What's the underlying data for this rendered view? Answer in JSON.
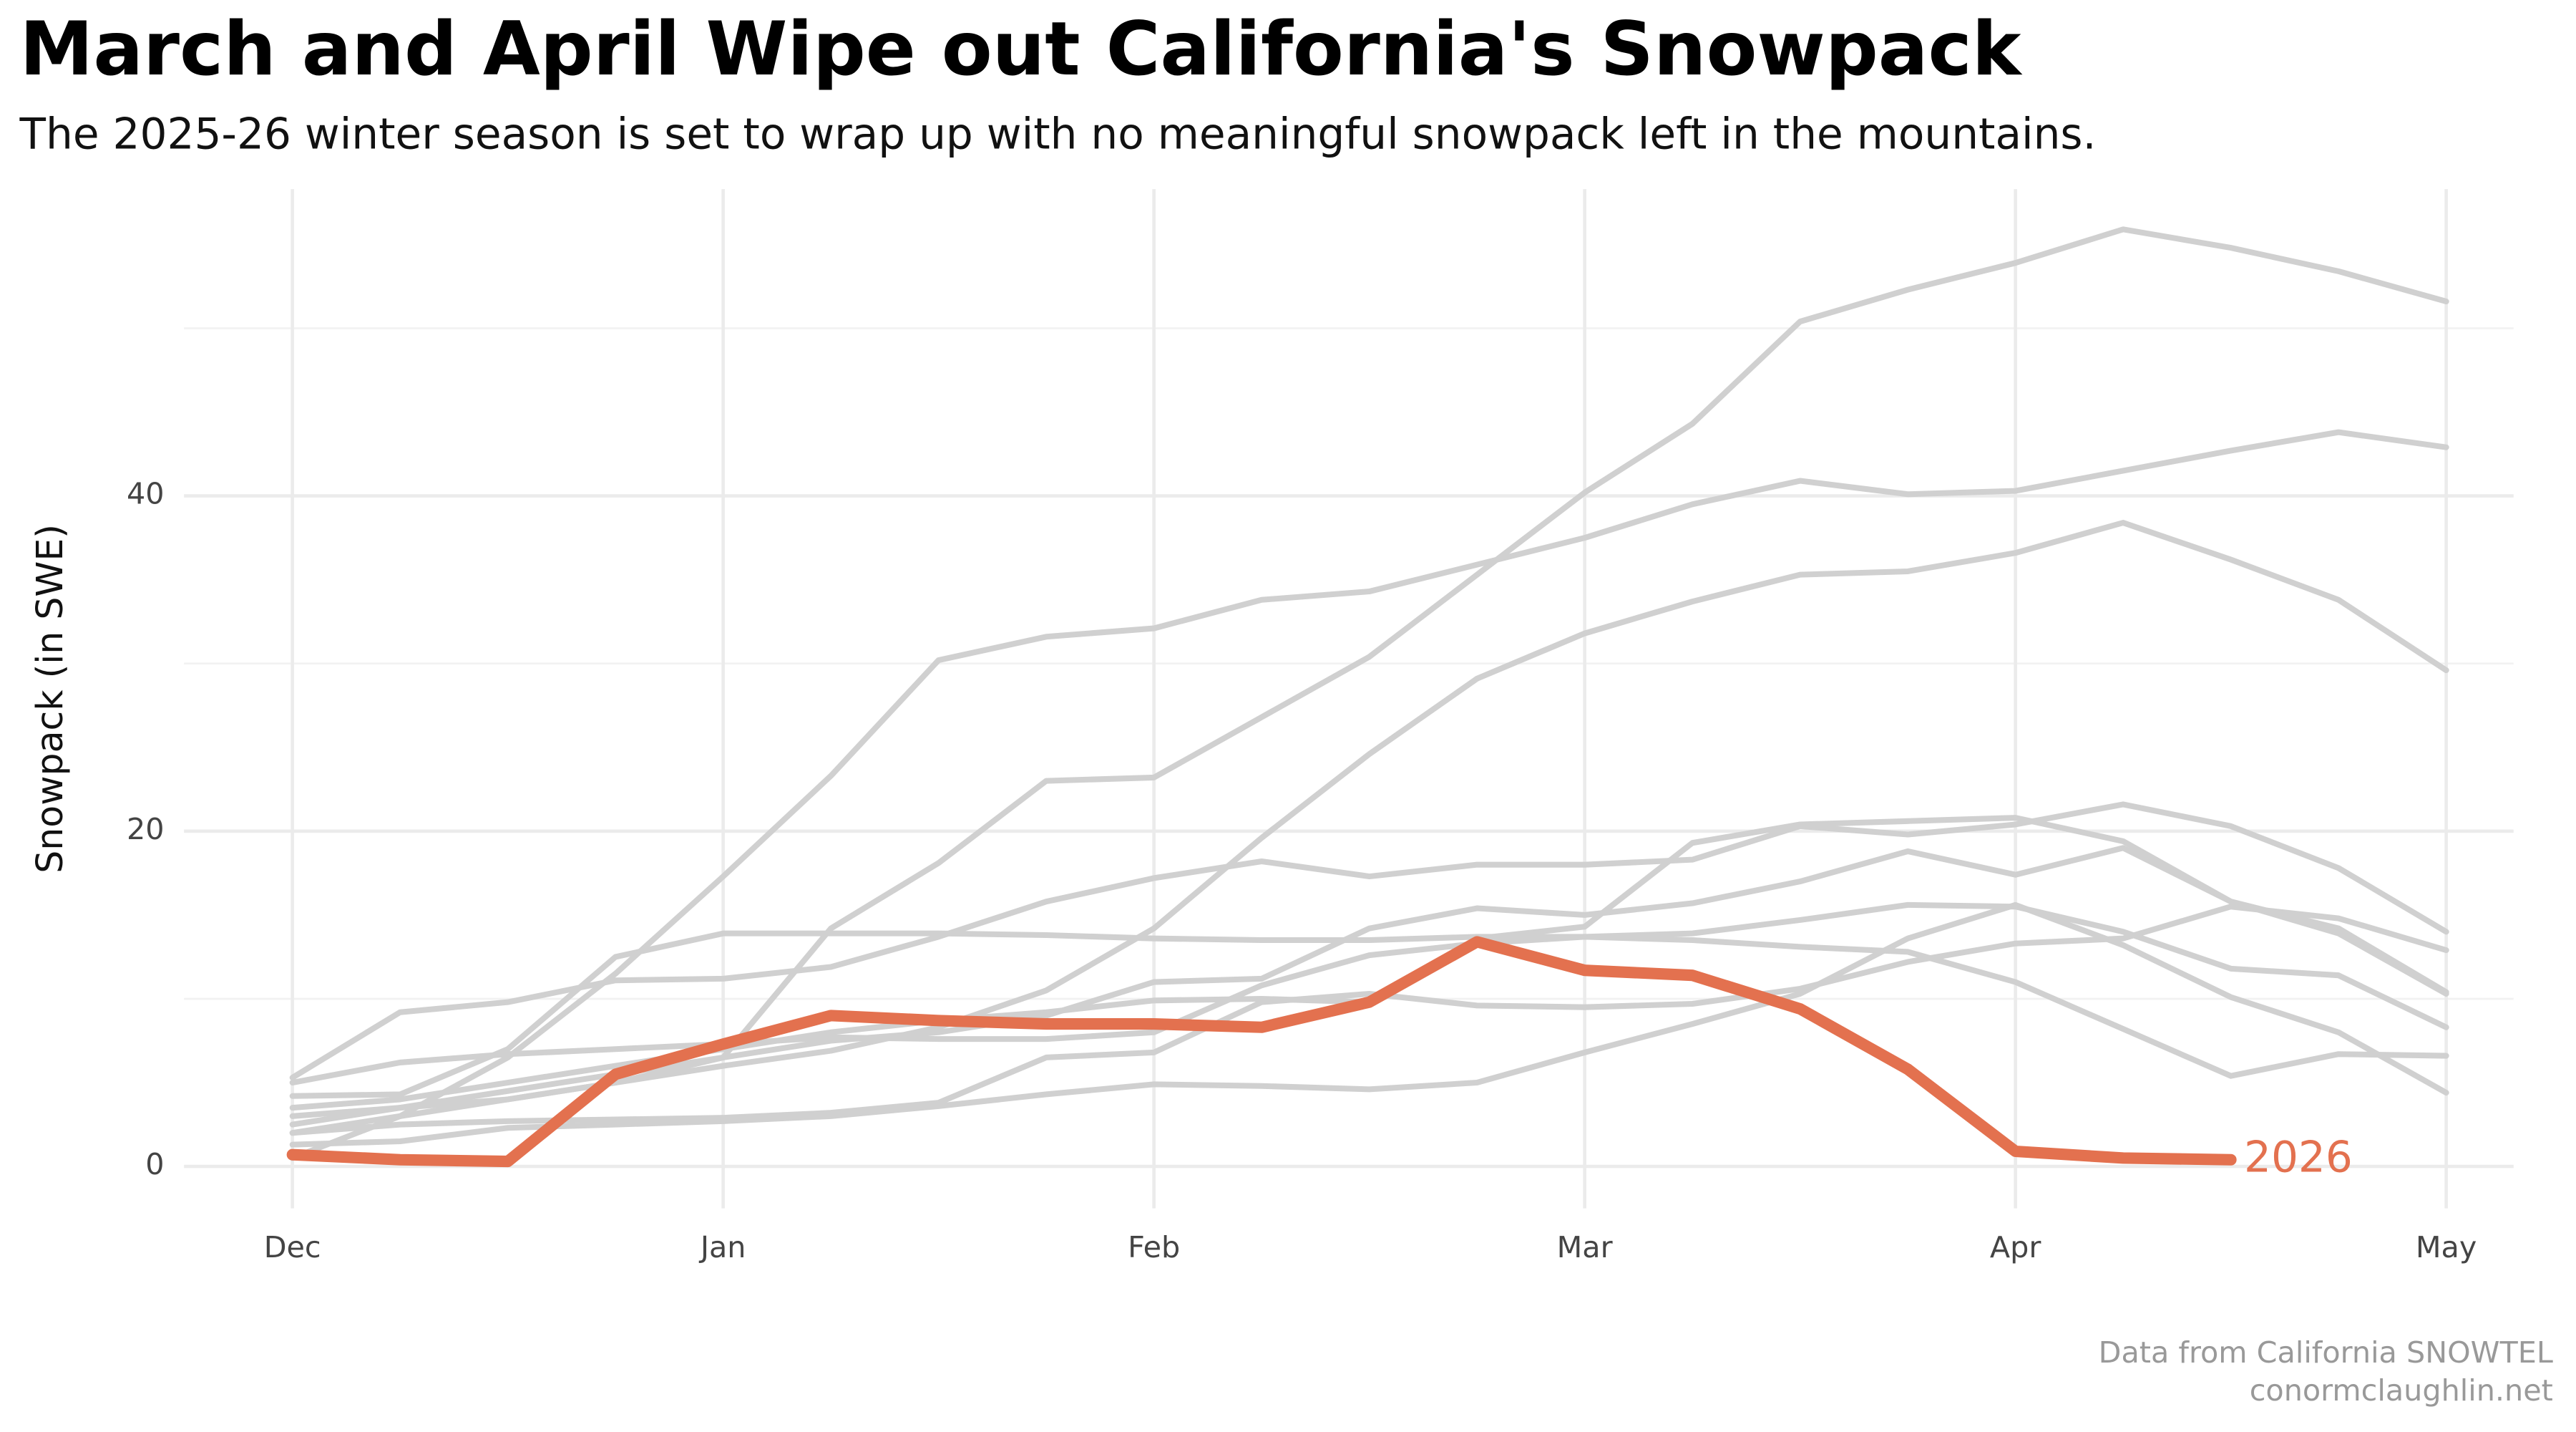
{
  "chart_data": {
    "type": "line",
    "title": "March and April Wipe out California's Snowpack",
    "subtitle": "The 2025-26 winter season is set to wrap up with no meaningful snowpack left in the mountains.",
    "y_label": "Snowpack (in SWE)",
    "caption": [
      "Data from California SNOWTEL",
      "conormclaughlin.net"
    ],
    "categories": [
      "Dec",
      null,
      null,
      null,
      "Jan",
      null,
      null,
      null,
      "Feb",
      null,
      null,
      null,
      "Mar",
      null,
      null,
      null,
      "Apr",
      null,
      null,
      null,
      "May"
    ],
    "ylim": [
      -2.5,
      58.3
    ],
    "yticks": [
      0,
      20,
      40
    ],
    "yminorticks": [
      10,
      30,
      50
    ],
    "grid": true,
    "series": [
      {
        "color": "#d0d0d0",
        "values": [
          2.5,
          3.5,
          4.5,
          5.5,
          6.5,
          14.2,
          18.1,
          23.0,
          23.2,
          26.8,
          30.4,
          35.3,
          40.2,
          44.3,
          50.4,
          52.3,
          53.9,
          55.9,
          54.8,
          53.4,
          51.6
        ]
      },
      {
        "color": "#d0d0d0",
        "values": [
          0.5,
          3,
          6.5,
          11.5,
          17.3,
          23.3,
          30.2,
          31.6,
          32.1,
          33.8,
          34.3,
          35.9,
          37.5,
          39.5,
          40.9,
          40.1,
          40.3,
          41.5,
          42.7,
          43.8,
          42.9
        ]
      },
      {
        "color": "#d0d0d0",
        "values": [
          2,
          3,
          4,
          5,
          6,
          6.9,
          8.3,
          10.5,
          14.2,
          19.6,
          24.6,
          29.1,
          31.8,
          33.7,
          35.3,
          35.5,
          36.6,
          38.4,
          36.2,
          33.8,
          29.6
        ]
      },
      {
        "color": "#d0d0d0",
        "values": [
          5.3,
          9.2,
          9.8,
          11.1,
          11.2,
          11.9,
          13.7,
          15.8,
          17.2,
          18.2,
          17.3,
          18.0,
          18.0,
          18.3,
          20.3,
          19.8,
          20.4,
          21.6,
          20.3,
          17.8,
          14.0
        ]
      },
      {
        "color": "#d0d0d0",
        "values": [
          4.2,
          4.3,
          7,
          12.5,
          13.9,
          13.9,
          13.9,
          13.8,
          13.6,
          13.5,
          13.5,
          13.7,
          13.7,
          13.5,
          13.1,
          12.8,
          11.0,
          8.2,
          5.4,
          6.7,
          6.6
        ]
      },
      {
        "color": "#d0d0d0",
        "values": [
          3,
          3.5,
          4,
          5,
          6.5,
          7.5,
          8,
          9,
          11,
          11.2,
          14.2,
          15.4,
          15.0,
          15.7,
          17.0,
          18.8,
          17.4,
          19.0,
          15.8,
          14.2,
          10.4
        ]
      },
      {
        "color": "#d0d0d0",
        "values": [
          1.3,
          1.5,
          2.3,
          2.5,
          2.7,
          3,
          3.6,
          4.3,
          4.9,
          4.8,
          4.6,
          5.0,
          6.8,
          8.5,
          10.3,
          13.6,
          15.6,
          13.2,
          10.1,
          8.0,
          4.4
        ]
      },
      {
        "color": "#d0d0d0",
        "values": [
          2,
          2.5,
          2.7,
          2.8,
          2.9,
          3.2,
          3.8,
          6.5,
          6.8,
          9.8,
          10.3,
          9.6,
          9.5,
          9.7,
          10.6,
          12.2,
          13.3,
          13.6,
          15.5,
          14.8,
          12.9
        ]
      },
      {
        "color": "#d0d0d0",
        "values": [
          3.5,
          4,
          5,
          6,
          7,
          8,
          8.7,
          9.2,
          9.9,
          10.0,
          9.8,
          13.6,
          14.3,
          19.3,
          20.4,
          20.6,
          20.8,
          19.4,
          15.8,
          13.9,
          10.3
        ]
      },
      {
        "color": "#d0d0d0",
        "values": [
          5,
          6.2,
          6.7,
          7,
          7.3,
          7.7,
          7.6,
          7.6,
          8.0,
          10.8,
          12.6,
          13.3,
          13.7,
          13.9,
          14.7,
          15.6,
          15.5,
          14.0,
          11.8,
          11.4,
          8.3
        ]
      },
      {
        "name": "2026",
        "color": "#e3714f",
        "values": [
          0.7,
          0.4,
          0.3,
          5.5,
          7.3,
          9.0,
          8.7,
          8.5,
          8.5,
          8.3,
          9.8,
          13.4,
          11.7,
          11.4,
          9.4,
          5.8,
          0.9,
          0.5,
          0.4,
          null,
          null
        ]
      }
    ]
  }
}
